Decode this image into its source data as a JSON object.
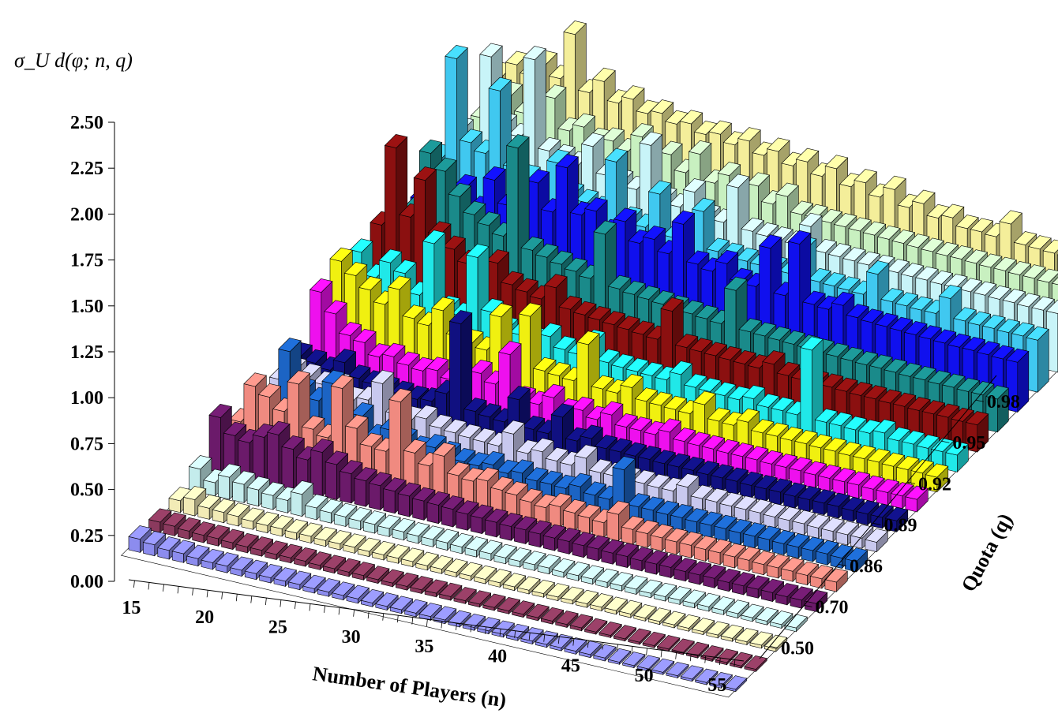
{
  "chart_data": {
    "type": "bar3d",
    "title": "",
    "zlabel": "σ_U d(φ; n, q)",
    "xlabel": "Number of Players (n)",
    "ylabel": "Quota (q)",
    "zlim": [
      0,
      2.5
    ],
    "z_ticks": [
      "0.00",
      "0.25",
      "0.50",
      "0.75",
      "1.00",
      "1.25",
      "1.50",
      "1.75",
      "2.00",
      "2.25",
      "2.50"
    ],
    "x_ticks": [
      "15",
      "20",
      "25",
      "30",
      "35",
      "40",
      "45",
      "50",
      "55"
    ],
    "q_ticks": [
      "0.50",
      "0.70",
      "0.86",
      "0.89",
      "0.92",
      "0.95",
      "0.98"
    ],
    "n": [
      15,
      16,
      17,
      18,
      19,
      20,
      21,
      22,
      23,
      24,
      25,
      26,
      27,
      28,
      29,
      30,
      31,
      32,
      33,
      34,
      35,
      36,
      37,
      38,
      39,
      40,
      41,
      42,
      43,
      44,
      45,
      46,
      47,
      48,
      49,
      50,
      51,
      52,
      53,
      54,
      55,
      56
    ],
    "series": [
      {
        "q": 0.5,
        "color": "#8c8cee",
        "values": [
          0.18,
          0.15,
          0.12,
          0.12,
          0.1,
          0.09,
          0.09,
          0.08,
          0.08,
          0.07,
          0.07,
          0.07,
          0.06,
          0.06,
          0.06,
          0.06,
          0.05,
          0.05,
          0.05,
          0.05,
          0.05,
          0.05,
          0.04,
          0.04,
          0.04,
          0.04,
          0.04,
          0.04,
          0.04,
          0.04,
          0.04,
          0.04,
          0.04,
          0.03,
          0.03,
          0.03,
          0.03,
          0.03,
          0.03,
          0.03,
          0.03,
          0.03
        ]
      },
      {
        "q": 0.6,
        "color": "#8b3a5e",
        "values": [
          0.14,
          0.13,
          0.11,
          0.1,
          0.1,
          0.09,
          0.08,
          0.08,
          0.07,
          0.07,
          0.07,
          0.06,
          0.06,
          0.06,
          0.06,
          0.05,
          0.05,
          0.05,
          0.05,
          0.05,
          0.05,
          0.04,
          0.04,
          0.04,
          0.04,
          0.04,
          0.04,
          0.04,
          0.04,
          0.04,
          0.03,
          0.03,
          0.03,
          0.03,
          0.03,
          0.03,
          0.03,
          0.03,
          0.03,
          0.03,
          0.03,
          0.03
        ]
      },
      {
        "q": 0.7,
        "color": "#f2ebb6",
        "values": [
          0.16,
          0.22,
          0.15,
          0.14,
          0.13,
          0.11,
          0.1,
          0.1,
          0.09,
          0.09,
          0.08,
          0.08,
          0.08,
          0.07,
          0.07,
          0.07,
          0.07,
          0.06,
          0.06,
          0.06,
          0.06,
          0.06,
          0.06,
          0.05,
          0.05,
          0.05,
          0.05,
          0.05,
          0.05,
          0.05,
          0.05,
          0.05,
          0.04,
          0.04,
          0.04,
          0.04,
          0.04,
          0.04,
          0.04,
          0.04,
          0.04,
          0.04
        ]
      },
      {
        "q": 0.8,
        "color": "#c4ecec",
        "values": [
          0.32,
          0.18,
          0.3,
          0.25,
          0.22,
          0.19,
          0.17,
          0.3,
          0.16,
          0.14,
          0.13,
          0.12,
          0.12,
          0.11,
          0.11,
          0.1,
          0.1,
          0.1,
          0.09,
          0.09,
          0.09,
          0.08,
          0.08,
          0.08,
          0.08,
          0.07,
          0.07,
          0.07,
          0.07,
          0.07,
          0.07,
          0.06,
          0.06,
          0.06,
          0.06,
          0.06,
          0.06,
          0.06,
          0.05,
          0.05,
          0.05,
          0.05
        ]
      },
      {
        "q": 0.86,
        "color": "#6b1a6a",
        "values": [
          0.75,
          0.55,
          0.5,
          0.62,
          0.7,
          0.55,
          0.45,
          0.6,
          0.48,
          0.4,
          0.35,
          0.33,
          0.3,
          0.28,
          0.26,
          0.25,
          0.24,
          0.22,
          0.21,
          0.2,
          0.19,
          0.19,
          0.18,
          0.17,
          0.17,
          0.16,
          0.16,
          0.15,
          0.15,
          0.14,
          0.14,
          0.14,
          0.13,
          0.13,
          0.13,
          0.12,
          0.12,
          0.12,
          0.12,
          0.11,
          0.11,
          0.11
        ]
      },
      {
        "q": 0.87,
        "color": "#f08a80",
        "values": [
          0.42,
          0.95,
          0.85,
          0.7,
          1.12,
          0.55,
          0.48,
          1.2,
          0.7,
          0.5,
          0.48,
          1.2,
          0.55,
          0.42,
          0.6,
          0.38,
          0.35,
          0.4,
          0.32,
          0.3,
          0.25,
          0.22,
          0.28,
          0.24,
          0.22,
          0.2,
          0.36,
          0.2,
          0.19,
          0.18,
          0.17,
          0.17,
          0.16,
          0.16,
          0.15,
          0.15,
          0.14,
          0.14,
          0.14,
          0.13,
          0.13,
          0.13
        ]
      },
      {
        "q": 0.88,
        "color": "#1c64c4",
        "values": [
          0.38,
          0.5,
          1.2,
          0.7,
          0.62,
          0.9,
          0.4,
          0.55,
          0.3,
          0.45,
          0.35,
          0.28,
          0.35,
          0.3,
          0.25,
          0.24,
          0.3,
          0.23,
          0.28,
          0.22,
          0.22,
          0.21,
          0.28,
          0.21,
          0.2,
          0.65,
          0.19,
          0.19,
          0.18,
          0.18,
          0.17,
          0.17,
          0.17,
          0.16,
          0.16,
          0.16,
          0.15,
          0.15,
          0.15,
          0.15,
          0.14,
          0.14
        ]
      },
      {
        "q": 0.89,
        "color": "#c8c8ee",
        "values": [
          0.45,
          0.62,
          0.58,
          0.52,
          0.55,
          0.4,
          0.45,
          0.72,
          0.35,
          0.32,
          0.38,
          0.3,
          0.28,
          0.26,
          0.25,
          0.24,
          0.45,
          0.23,
          0.3,
          0.22,
          0.21,
          0.35,
          0.2,
          0.2,
          0.19,
          0.19,
          0.18,
          0.18,
          0.28,
          0.17,
          0.17,
          0.16,
          0.16,
          0.16,
          0.15,
          0.15,
          0.15,
          0.14,
          0.14,
          0.14,
          0.14,
          0.13
        ]
      },
      {
        "q": 0.9,
        "color": "#101080",
        "values": [
          0.5,
          0.45,
          0.4,
          0.55,
          0.38,
          0.35,
          0.32,
          0.3,
          0.28,
          0.3,
          0.45,
          1.45,
          0.3,
          0.27,
          0.25,
          0.6,
          0.24,
          0.23,
          0.5,
          0.22,
          0.3,
          0.21,
          0.21,
          0.2,
          0.2,
          0.19,
          0.19,
          0.19,
          0.18,
          0.18,
          0.18,
          0.17,
          0.17,
          0.17,
          0.16,
          0.16,
          0.16,
          0.16,
          0.15,
          0.15,
          0.15,
          0.15
        ]
      },
      {
        "q": 0.91,
        "color": "#ee10ee",
        "values": [
          1.1,
          0.85,
          0.6,
          0.55,
          0.4,
          0.45,
          0.38,
          0.35,
          0.4,
          0.32,
          0.3,
          0.5,
          0.4,
          0.85,
          0.28,
          0.26,
          0.4,
          0.25,
          0.32,
          0.24,
          0.35,
          0.23,
          0.23,
          0.22,
          0.3,
          0.22,
          0.21,
          0.21,
          0.2,
          0.2,
          0.2,
          0.19,
          0.19,
          0.19,
          0.18,
          0.18,
          0.18,
          0.18,
          0.17,
          0.17,
          0.17,
          0.17
        ]
      },
      {
        "q": 0.92,
        "color": "#f0f010",
        "values": [
          1.25,
          1.1,
          0.95,
          0.8,
          1.05,
          0.7,
          0.65,
          0.9,
          0.6,
          0.55,
          0.5,
          1.0,
          0.45,
          1.1,
          0.4,
          0.38,
          0.36,
          0.9,
          0.34,
          0.33,
          0.45,
          0.31,
          0.3,
          0.29,
          0.28,
          0.45,
          0.27,
          0.26,
          0.35,
          0.25,
          0.25,
          0.24,
          0.24,
          0.23,
          0.23,
          0.22,
          0.22,
          0.22,
          0.21,
          0.21,
          0.21,
          0.2
        ]
      },
      {
        "q": 0.93,
        "color": "#20e8e8",
        "values": [
          1.1,
          0.8,
          1.05,
          0.95,
          0.7,
          1.45,
          0.6,
          0.55,
          1.4,
          0.7,
          0.5,
          0.48,
          0.45,
          0.55,
          0.42,
          0.4,
          0.6,
          0.38,
          0.36,
          0.35,
          0.34,
          0.33,
          0.45,
          0.32,
          0.31,
          0.3,
          0.29,
          0.35,
          0.28,
          0.28,
          0.27,
          1.2,
          0.26,
          0.26,
          0.25,
          0.25,
          0.3,
          0.24,
          0.24,
          0.23,
          0.23,
          0.23
        ]
      },
      {
        "q": 0.94,
        "color": "#8b1010",
        "values": [
          1.2,
          2.3,
          1.4,
          1.95,
          1.25,
          1.1,
          0.95,
          0.9,
          1.05,
          0.8,
          0.75,
          0.7,
          0.9,
          0.65,
          0.62,
          0.6,
          0.58,
          0.56,
          0.54,
          0.52,
          0.95,
          0.5,
          0.49,
          0.48,
          0.47,
          0.46,
          0.45,
          0.55,
          0.44,
          0.43,
          0.42,
          0.42,
          0.41,
          0.4,
          0.4,
          0.39,
          0.39,
          0.38,
          0.38,
          0.38,
          0.37,
          0.37
        ]
      },
      {
        "q": 0.95,
        "color": "#1a8a8a",
        "values": [
          0.95,
          1.2,
          2.0,
          1.8,
          1.5,
          1.3,
          1.2,
          1.1,
          2.35,
          1.0,
          0.95,
          0.9,
          0.85,
          0.8,
          1.45,
          0.75,
          0.72,
          0.7,
          0.68,
          0.66,
          0.64,
          0.62,
          0.6,
          1.1,
          0.58,
          0.57,
          0.56,
          0.55,
          0.54,
          0.53,
          0.52,
          0.51,
          0.5,
          0.5,
          0.49,
          0.48,
          0.48,
          0.47,
          0.47,
          0.46,
          0.46,
          0.45
        ]
      },
      {
        "q": 0.96,
        "color": "#1010ee",
        "values": [
          1.0,
          1.2,
          1.1,
          1.3,
          1.05,
          1.5,
          1.2,
          1.4,
          1.6,
          1.25,
          1.9,
          1.3,
          1.4,
          1.15,
          1.35,
          1.1,
          1.2,
          1.05,
          1.5,
          1.0,
          0.95,
          1.1,
          0.9,
          0.88,
          1.45,
          0.85,
          1.6,
          0.82,
          0.8,
          0.9,
          0.78,
          0.76,
          0.75,
          0.74,
          0.73,
          0.72,
          0.71,
          0.7,
          0.7,
          0.69,
          0.68,
          0.68
        ]
      },
      {
        "q": 0.97,
        "color": "#40c8f0",
        "values": [
          1.3,
          2.7,
          1.6,
          1.5,
          2.4,
          1.4,
          1.3,
          1.25,
          1.6,
          1.2,
          1.15,
          1.1,
          1.8,
          1.05,
          1.0,
          1.5,
          0.95,
          0.93,
          1.4,
          0.9,
          0.88,
          0.86,
          0.85,
          0.84,
          0.83,
          1.2,
          0.81,
          0.8,
          0.79,
          0.78,
          1.1,
          0.77,
          0.76,
          0.75,
          0.75,
          1.0,
          0.74,
          0.73,
          0.73,
          0.72,
          0.72,
          0.71
        ]
      },
      {
        "q": 0.98,
        "color": "#c8f4f8",
        "values": [
          1.4,
          1.2,
          2.5,
          1.6,
          1.5,
          2.6,
          1.4,
          1.35,
          1.3,
          1.6,
          1.25,
          1.2,
          1.15,
          1.8,
          1.1,
          1.05,
          1.3,
          1.0,
          0.98,
          1.5,
          0.95,
          0.93,
          0.92,
          0.91,
          1.2,
          0.89,
          0.88,
          0.87,
          0.86,
          0.86,
          0.85,
          0.84,
          0.84,
          0.83,
          0.83,
          0.82,
          0.82,
          0.81,
          0.81,
          0.8,
          0.8,
          0.8
        ]
      },
      {
        "q": 0.99,
        "color": "#c8f0c0",
        "values": [
          1.3,
          1.4,
          1.7,
          1.5,
          1.6,
          1.8,
          1.4,
          1.5,
          1.35,
          1.4,
          1.3,
          1.55,
          1.25,
          1.4,
          1.2,
          1.5,
          1.15,
          1.3,
          1.1,
          1.25,
          1.05,
          1.2,
          1.0,
          1.0,
          0.98,
          0.97,
          0.96,
          0.95,
          0.94,
          0.93,
          0.92,
          0.91,
          0.9,
          0.9,
          0.89,
          0.88,
          0.88,
          0.87,
          0.87,
          0.86,
          0.86,
          0.85
        ]
      },
      {
        "q": 1.0,
        "color": "#f4ee9a",
        "values": [
          1.6,
          1.8,
          1.7,
          1.9,
          1.75,
          2.4,
          1.65,
          1.85,
          1.6,
          1.7,
          1.55,
          1.6,
          1.5,
          1.55,
          1.45,
          1.5,
          1.4,
          1.5,
          1.35,
          1.45,
          1.3,
          1.4,
          1.25,
          1.4,
          1.2,
          1.3,
          1.15,
          1.3,
          1.1,
          1.2,
          1.05,
          1.1,
          1.0,
          1.0,
          0.98,
          1.2,
          0.96,
          0.95,
          0.94,
          0.93,
          1.1,
          0.92
        ]
      }
    ]
  }
}
